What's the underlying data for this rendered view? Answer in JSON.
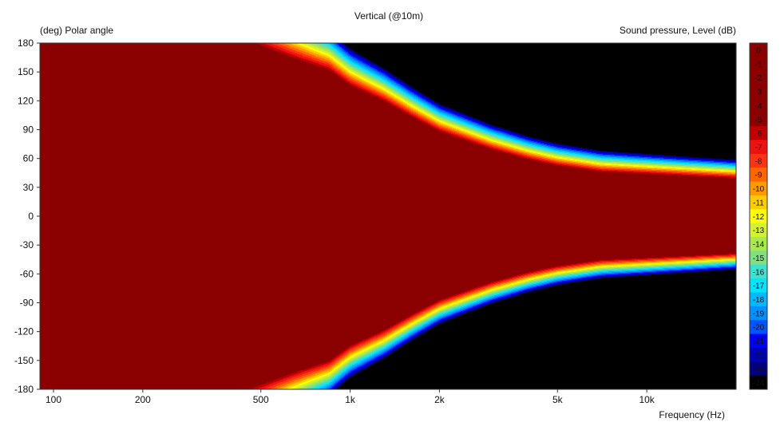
{
  "chart_data": {
    "type": "heatmap",
    "title": "Vertical (@10m)",
    "ylabel": "(deg)  Polar angle",
    "xlabel": "Frequency  (Hz)",
    "colorbar_label": "Sound pressure, Level  (dB)",
    "x_scale": "log",
    "xlim": [
      90,
      20000
    ],
    "ylim": [
      -180,
      180
    ],
    "x_ticks": [
      {
        "value": 100,
        "label": "100"
      },
      {
        "value": 200,
        "label": "200"
      },
      {
        "value": 500,
        "label": "500"
      },
      {
        "value": 1000,
        "label": "1k"
      },
      {
        "value": 2000,
        "label": "2k"
      },
      {
        "value": 5000,
        "label": "5k"
      },
      {
        "value": 10000,
        "label": "10k"
      }
    ],
    "y_ticks": [
      {
        "value": 180,
        "label": "180"
      },
      {
        "value": 150,
        "label": "150"
      },
      {
        "value": 120,
        "label": "120"
      },
      {
        "value": 90,
        "label": "90"
      },
      {
        "value": 60,
        "label": "60"
      },
      {
        "value": 30,
        "label": "30"
      },
      {
        "value": 0,
        "label": "0"
      },
      {
        "value": -30,
        "label": "-30"
      },
      {
        "value": -60,
        "label": "-60"
      },
      {
        "value": -90,
        "label": "-90"
      },
      {
        "value": -120,
        "label": "-120"
      },
      {
        "value": -150,
        "label": "-150"
      },
      {
        "value": -180,
        "label": "-180"
      }
    ],
    "colorbar": {
      "levels": [
        {
          "label": "0",
          "color": "#8b0000"
        },
        {
          "label": "-1",
          "color": "#8b0000"
        },
        {
          "label": "-2",
          "color": "#8b0000"
        },
        {
          "label": "-3",
          "color": "#8b0000"
        },
        {
          "label": "-4",
          "color": "#8b0000"
        },
        {
          "label": "-5",
          "color": "#8b0000"
        },
        {
          "label": "-6",
          "color": "#c00000"
        },
        {
          "label": "-7",
          "color": "#ee1111"
        },
        {
          "label": "-8",
          "color": "#ff3311"
        },
        {
          "label": "-9",
          "color": "#ff6600"
        },
        {
          "label": "-10",
          "color": "#ff9900"
        },
        {
          "label": "-11",
          "color": "#ffcc00"
        },
        {
          "label": "-12",
          "color": "#ffff00"
        },
        {
          "label": "-13",
          "color": "#d4f032"
        },
        {
          "label": "-14",
          "color": "#a8e850"
        },
        {
          "label": "-15",
          "color": "#80e080"
        },
        {
          "label": "-16",
          "color": "#40e0d0"
        },
        {
          "label": "-17",
          "color": "#00e5ff"
        },
        {
          "label": "-18",
          "color": "#00b8ff"
        },
        {
          "label": "-19",
          "color": "#0090ff"
        },
        {
          "label": "-20",
          "color": "#0055ff"
        },
        {
          "label": "-21",
          "color": "#0000ff"
        },
        {
          "label": "-22",
          "color": "#0000bb"
        },
        {
          "label": "-23",
          "color": "#000080"
        },
        {
          "label": "-24",
          "color": "#000000"
        }
      ]
    },
    "model": {
      "beam_half_width_deg": [
        [
          90,
          180
        ],
        [
          300,
          180
        ],
        [
          450,
          165
        ],
        [
          650,
          150
        ],
        [
          850,
          140
        ],
        [
          1000,
          125
        ],
        [
          1300,
          110
        ],
        [
          1600,
          95
        ],
        [
          2000,
          80
        ],
        [
          2500,
          70
        ],
        [
          3000,
          62
        ],
        [
          4000,
          52
        ],
        [
          5000,
          46
        ],
        [
          7000,
          40
        ],
        [
          10000,
          38
        ],
        [
          20000,
          34
        ]
      ],
      "rolloff_db_per_10deg": [
        [
          200,
          1.0
        ],
        [
          500,
          2.0
        ],
        [
          1000,
          3.0
        ],
        [
          2000,
          4.0
        ],
        [
          5000,
          5.0
        ],
        [
          20000,
          6.0
        ]
      ]
    }
  }
}
